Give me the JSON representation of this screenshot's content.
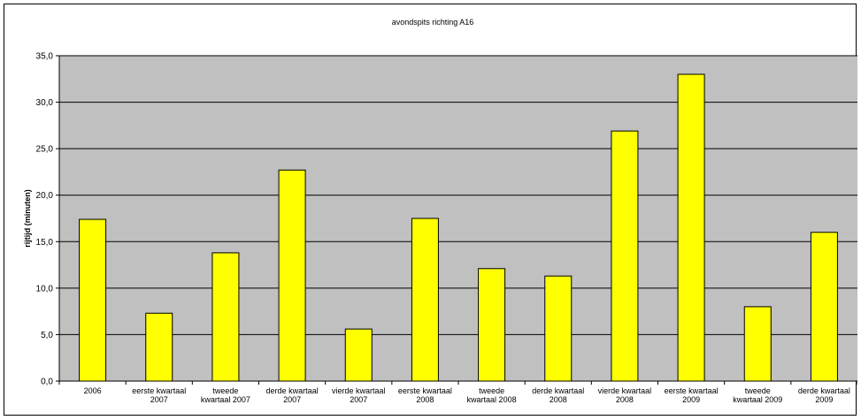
{
  "chart_data": {
    "type": "bar",
    "title": "avondspits richting A16",
    "xlabel": "",
    "ylabel": "rijtijd (minuten)",
    "ylim": [
      0,
      35
    ],
    "ytick_step": 5,
    "yticks": [
      "0,0",
      "5,0",
      "10,0",
      "15,0",
      "20,0",
      "25,0",
      "30,0",
      "35,0"
    ],
    "grid": true,
    "categories": [
      [
        "2006"
      ],
      [
        "eerste kwartaal",
        "2007"
      ],
      [
        "tweede",
        "kwartaal 2007"
      ],
      [
        "derde kwartaal",
        "2007"
      ],
      [
        "vierde kwartaal",
        "2007"
      ],
      [
        "eerste kwartaal",
        "2008"
      ],
      [
        "tweede",
        "kwartaal 2008"
      ],
      [
        "derde kwartaal",
        "2008"
      ],
      [
        "vierde kwartaal",
        "2008"
      ],
      [
        "eerste kwartaal",
        "2009"
      ],
      [
        "tweede",
        "kwartaal 2009"
      ],
      [
        "derde kwartaal",
        "2009"
      ]
    ],
    "values": [
      17.4,
      7.3,
      13.8,
      22.7,
      5.6,
      17.5,
      12.1,
      11.3,
      26.9,
      33.0,
      8.0,
      16.0
    ],
    "colors": {
      "bar": "#ffff00",
      "bar_border": "#000000",
      "plot_background": "#c0c0c0",
      "grid": "#000000"
    }
  }
}
